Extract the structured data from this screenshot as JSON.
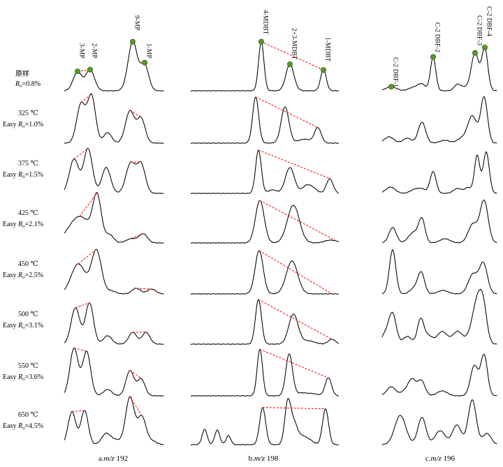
{
  "chart_data": {
    "type": "line",
    "panels": [
      {
        "caption_prefix": "a.",
        "caption_mz": "m/z",
        "caption_value": "192",
        "peaks": [
          "3-MP",
          "2-MP",
          "9-MP",
          "1-MP"
        ]
      },
      {
        "caption_prefix": "b.",
        "caption_mz": "m/z",
        "caption_value": "198",
        "peaks": [
          "4-MDBT",
          "2+3-MDBT",
          "1-MDBT"
        ]
      },
      {
        "caption_prefix": "c.",
        "caption_mz": "m/z",
        "caption_value": "196",
        "peaks": [
          "C-2 DBF-1",
          "C-2 DBF-2",
          "C-2 DBF-3",
          "C-2 DBF-4"
        ]
      }
    ],
    "samples": [
      {
        "label": "原样",
        "ro_prefix": "",
        "ro_value": "=0.8%"
      },
      {
        "label": "325 ℃",
        "ro_prefix": "Easy ",
        "ro_value": "=1.0%"
      },
      {
        "label": "375 ℃",
        "ro_prefix": "Easy ",
        "ro_value": "=1.5%"
      },
      {
        "label": "425 ℃",
        "ro_prefix": "Easy ",
        "ro_value": "=2.1%"
      },
      {
        "label": "450 ℃",
        "ro_prefix": "Easy ",
        "ro_value": "=2.5%"
      },
      {
        "label": "500 ℃",
        "ro_prefix": "Easy ",
        "ro_value": "=3.1%"
      },
      {
        "label": "550 ℃",
        "ro_prefix": "Easy ",
        "ro_value": "=3.6%"
      },
      {
        "label": "650 ℃",
        "ro_prefix": "Easy ",
        "ro_value": "=4.5%"
      }
    ],
    "ro_symbol": "R",
    "ro_subscript": "o",
    "colors": {
      "trace": "#000000",
      "marker_fill": "#5a9a2a",
      "marker_stroke": "#2f5f10",
      "ratio_line": "#ff0000"
    }
  }
}
